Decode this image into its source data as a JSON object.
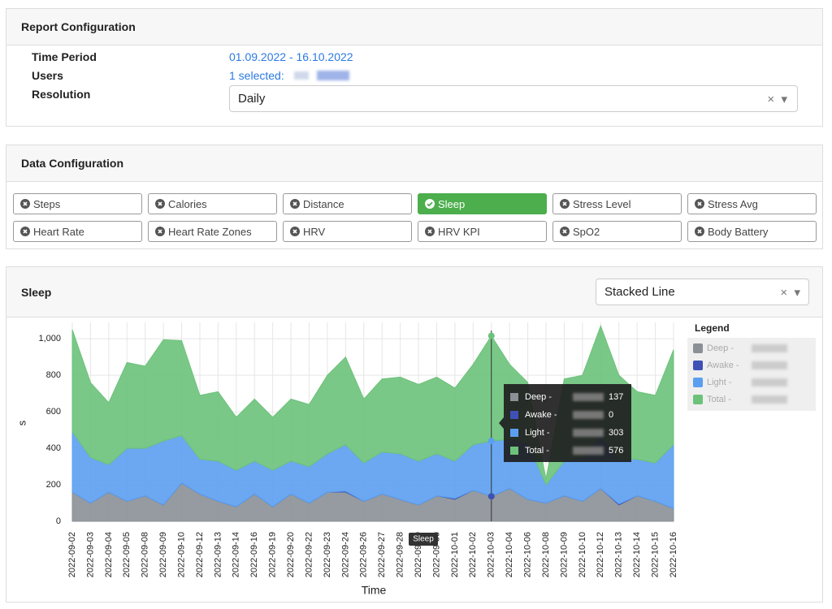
{
  "report_config": {
    "title": "Report Configuration",
    "rows": [
      {
        "label": "Time Period",
        "value": "01.09.2022 - 16.10.2022"
      },
      {
        "label": "Users",
        "value": "1 selected:"
      },
      {
        "label": "Resolution"
      }
    ],
    "resolution": "Daily"
  },
  "data_config": {
    "title": "Data Configuration",
    "buttons": [
      {
        "label": "Steps",
        "active": false
      },
      {
        "label": "Calories",
        "active": false
      },
      {
        "label": "Distance",
        "active": false
      },
      {
        "label": "Sleep",
        "active": true
      },
      {
        "label": "Stress Level",
        "active": false
      },
      {
        "label": "Stress Avg",
        "active": false
      },
      {
        "label": "Heart Rate",
        "active": false
      },
      {
        "label": "Heart Rate Zones",
        "active": false
      },
      {
        "label": "HRV",
        "active": false
      },
      {
        "label": "HRV KPI",
        "active": false
      },
      {
        "label": "SpO2",
        "active": false
      },
      {
        "label": "Body Battery",
        "active": false
      }
    ]
  },
  "chart_panel": {
    "title": "Sleep",
    "chart_type_select": "Stacked Line",
    "hover_label": "Sleep"
  },
  "chart_data": {
    "type": "stacked_area",
    "y_label": "s",
    "x_label": "Time",
    "legend_title": "Legend",
    "grid": true,
    "categories": [
      "2022-09-02",
      "2022-09-03",
      "2022-09-04",
      "2022-09-05",
      "2022-09-08",
      "2022-09-09",
      "2022-09-10",
      "2022-09-12",
      "2022-09-13",
      "2022-09-14",
      "2022-09-16",
      "2022-09-19",
      "2022-09-20",
      "2022-09-22",
      "2022-09-23",
      "2022-09-24",
      "2022-09-26",
      "2022-09-27",
      "2022-09-28",
      "2022-09-29",
      "2022-09-30",
      "2022-10-01",
      "2022-10-02",
      "2022-10-03",
      "2022-10-04",
      "2022-10-06",
      "2022-10-08",
      "2022-10-09",
      "2022-10-10",
      "2022-10-12",
      "2022-10-13",
      "2022-10-14",
      "2022-10-15",
      "2022-10-16"
    ],
    "series": [
      {
        "name": "Deep -",
        "color": "#8a9096",
        "values": [
          160,
          100,
          160,
          110,
          140,
          90,
          210,
          150,
          110,
          80,
          150,
          80,
          150,
          100,
          160,
          160,
          110,
          150,
          120,
          90,
          140,
          120,
          170,
          137,
          180,
          120,
          100,
          140,
          110,
          180,
          90,
          140,
          110,
          70
        ]
      },
      {
        "name": "Awake -",
        "color": "#3f51b5",
        "values": [
          0,
          0,
          0,
          0,
          0,
          0,
          0,
          0,
          0,
          0,
          0,
          0,
          0,
          0,
          0,
          5,
          0,
          0,
          0,
          0,
          0,
          5,
          0,
          0,
          0,
          0,
          0,
          0,
          0,
          0,
          5,
          0,
          0,
          0
        ]
      },
      {
        "name": "Light -",
        "color": "#5b9ef0",
        "values": [
          330,
          250,
          150,
          290,
          260,
          350,
          260,
          190,
          220,
          200,
          180,
          200,
          180,
          200,
          210,
          255,
          210,
          230,
          250,
          240,
          230,
          205,
          250,
          303,
          270,
          310,
          100,
          190,
          240,
          290,
          245,
          200,
          210,
          350
        ]
      },
      {
        "name": "Total -",
        "color": "#6cc27a",
        "values": [
          560,
          410,
          340,
          470,
          450,
          555,
          520,
          350,
          380,
          290,
          340,
          290,
          340,
          340,
          430,
          480,
          350,
          400,
          420,
          420,
          420,
          400,
          440,
          576,
          410,
          330,
          30,
          450,
          450,
          600,
          460,
          370,
          370,
          520
        ]
      }
    ],
    "ylim": [
      0,
      1090
    ],
    "yticks": [
      0,
      200,
      400,
      600,
      800,
      {
        "value": 1000,
        "label": "1,000"
      }
    ],
    "tooltip_index": 23
  }
}
